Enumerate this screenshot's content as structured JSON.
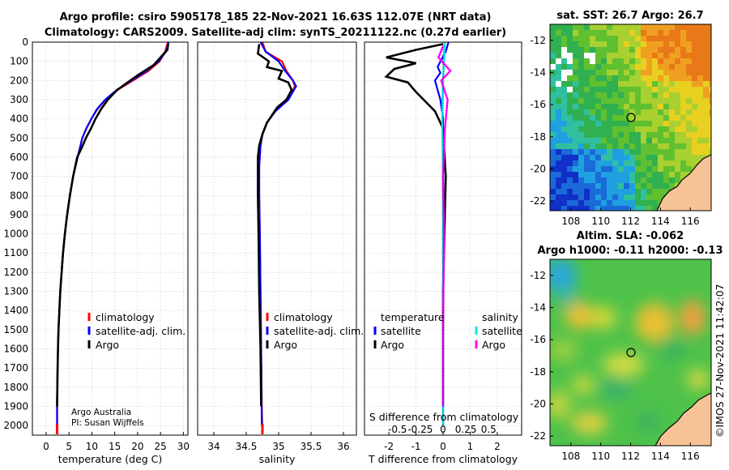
{
  "figure": {
    "title_line1": "Argo profile: csiro 5905178_185 22-Nov-2021 16.63S 112.07E (NRT data)",
    "title_line2": "Climatology: CARS2009. Satellite-adj clim: synTS_20211122.nc (0.27d earlier)",
    "timestamp": "©IMOS 27-Nov-2021 11:42:07",
    "credit_line1": "Argo Australia",
    "credit_line2": "PI: Susan Wijffels"
  },
  "colors": {
    "climatology": "#ff0000",
    "satellite_adj": "#0000ff",
    "argo": "#000000",
    "temp_satellite": "#0000ff",
    "sal_satellite": "#00e5ee",
    "sal_argo": "#ff00ff"
  },
  "chart_data": [
    {
      "id": "temperature",
      "type": "line",
      "xlabel": "temperature (deg C)",
      "xlim": [
        -3,
        31
      ],
      "ylim": [
        0,
        2050
      ],
      "xticks": [
        0,
        5,
        10,
        15,
        20,
        25,
        30
      ],
      "yticks": [
        0,
        100,
        200,
        300,
        400,
        500,
        600,
        700,
        800,
        900,
        1000,
        1100,
        1200,
        1300,
        1400,
        1500,
        1600,
        1700,
        1800,
        1900,
        2000
      ],
      "legend": [
        "climatology",
        "satellite-adj. clim.",
        "Argo"
      ],
      "series": [
        {
          "name": "climatology",
          "color_key": "climatology",
          "x": [
            26.6,
            26.0,
            24.8,
            22.4,
            19.0,
            15.6,
            13.0,
            11.2,
            9.9,
            8.8,
            7.9,
            6.9,
            5.9,
            5.2,
            4.6,
            4.1,
            3.7,
            3.4,
            3.1,
            2.9,
            2.7,
            2.6,
            2.5,
            2.4,
            2.4
          ],
          "y": [
            0,
            50,
            100,
            150,
            200,
            250,
            300,
            350,
            400,
            450,
            500,
            600,
            700,
            800,
            900,
            1000,
            1100,
            1200,
            1300,
            1400,
            1500,
            1600,
            1700,
            1850,
            2040
          ]
        },
        {
          "name": "satellite-adj. clim.",
          "color_key": "satellite_adj",
          "x": [
            26.8,
            26.2,
            24.6,
            22.0,
            18.7,
            15.4,
            12.9,
            11.1,
            9.9,
            8.8,
            7.9,
            6.9,
            5.9,
            5.2,
            4.6,
            4.1,
            3.7,
            3.4,
            3.1,
            2.9,
            2.7,
            2.6,
            2.5,
            2.4,
            2.4
          ],
          "y": [
            0,
            50,
            100,
            150,
            200,
            250,
            300,
            350,
            400,
            450,
            500,
            600,
            700,
            800,
            900,
            1000,
            1100,
            1200,
            1300,
            1400,
            1500,
            1600,
            1700,
            1850,
            2000
          ]
        },
        {
          "name": "Argo",
          "color_key": "argo",
          "x": [
            26.7,
            26.5,
            25.0,
            23.5,
            20.2,
            17.8,
            15.5,
            13.5,
            12.0,
            10.8,
            9.8,
            8.7,
            7.8,
            6.8,
            5.9,
            5.2,
            4.6,
            4.1,
            3.7,
            3.4,
            3.1,
            2.9,
            2.7,
            2.6,
            2.5,
            2.4
          ],
          "y": [
            10,
            40,
            80,
            120,
            170,
            210,
            250,
            300,
            350,
            400,
            450,
            500,
            550,
            600,
            700,
            800,
            900,
            1000,
            1100,
            1200,
            1300,
            1400,
            1500,
            1600,
            1700,
            1900
          ]
        }
      ]
    },
    {
      "id": "salinity",
      "type": "line",
      "xlabel": "salinity",
      "xlim": [
        33.75,
        36.2
      ],
      "ylim": [
        0,
        2050
      ],
      "xticks": [
        34,
        34.5,
        35,
        35.5,
        36
      ],
      "legend": [
        "climatology",
        "satellite-adj. clim.",
        "Argo"
      ],
      "series": [
        {
          "name": "climatology",
          "color_key": "climatology",
          "x": [
            34.75,
            34.8,
            35.05,
            35.12,
            35.22,
            35.25,
            35.15,
            34.95,
            34.82,
            34.75,
            34.72,
            34.7,
            34.7,
            34.71,
            34.72,
            34.73,
            34.74,
            34.75
          ],
          "y": [
            0,
            50,
            100,
            150,
            200,
            230,
            300,
            360,
            420,
            480,
            540,
            650,
            800,
            1000,
            1300,
            1600,
            1900,
            2040
          ]
        },
        {
          "name": "satellite-adj. clim.",
          "color_key": "satellite_adj",
          "x": [
            34.72,
            34.8,
            35.0,
            35.1,
            35.22,
            35.27,
            35.15,
            34.95,
            34.82,
            34.75,
            34.72,
            34.7,
            34.7,
            34.71,
            34.72,
            34.73,
            34.74
          ],
          "y": [
            0,
            50,
            100,
            150,
            200,
            230,
            300,
            360,
            420,
            480,
            540,
            650,
            800,
            1000,
            1300,
            1600,
            2000
          ]
        },
        {
          "name": "Argo",
          "color_key": "argo",
          "x": [
            34.7,
            34.68,
            34.85,
            34.82,
            35.05,
            35.0,
            35.15,
            35.2,
            35.12,
            34.98,
            34.9,
            34.82,
            34.75,
            34.7,
            34.68,
            34.68,
            34.69,
            34.7,
            34.72,
            34.73
          ],
          "y": [
            10,
            60,
            100,
            130,
            150,
            190,
            210,
            250,
            300,
            340,
            380,
            420,
            480,
            540,
            600,
            800,
            1000,
            1300,
            1600,
            1900
          ]
        }
      ]
    },
    {
      "id": "difference",
      "type": "line",
      "xlabel": "T difference from climatology",
      "xlabel_top": "S difference from climatology",
      "xlim": [
        -2.9,
        2.9
      ],
      "ylim": [
        0,
        2050
      ],
      "xticks": [
        -2,
        -1,
        0,
        1,
        2
      ],
      "xticks_top": [
        -0.5,
        -0.25,
        0,
        0.25,
        0.5
      ],
      "xticks_top_labels": [
        "-0.5",
        "-0.25",
        "0",
        "0.25",
        "0.5"
      ],
      "legend_title_left": "temperature",
      "legend_title_right": "salinity",
      "legend_left": [
        "satellite",
        "Argo"
      ],
      "legend_right": [
        "satellite",
        "Argo"
      ],
      "series": [
        {
          "name": "temperature satellite",
          "color_key": "temp_satellite",
          "x": [
            0.2,
            0.1,
            -0.1,
            -0.2,
            -0.1,
            -0.3,
            -0.2,
            -0.1,
            0.0,
            0.0,
            0.0,
            0.0,
            0.0
          ],
          "y": [
            0,
            50,
            100,
            130,
            160,
            200,
            250,
            300,
            400,
            600,
            1000,
            1500,
            2000
          ]
        },
        {
          "name": "temperature Argo",
          "color_key": "argo",
          "x": [
            0.0,
            -1.0,
            -2.1,
            -1.0,
            -1.8,
            -2.1,
            -1.3,
            -1.0,
            -0.3,
            0.0,
            0.1,
            0.0,
            0.0
          ],
          "y": [
            10,
            40,
            80,
            110,
            140,
            180,
            210,
            260,
            360,
            450,
            700,
            1300,
            1900
          ]
        },
        {
          "name": "salinity satellite",
          "color_key": "sal_satellite",
          "x": [
            0.02,
            0.0,
            -0.01,
            0.0,
            0.0,
            0.0,
            0.0
          ],
          "y": [
            0,
            200,
            400,
            700,
            1100,
            1600,
            2000
          ]
        },
        {
          "name": "salinity Argo",
          "color_key": "sal_argo",
          "x": [
            0.0,
            -0.05,
            0.08,
            -0.02,
            0.05,
            0.02,
            0.0,
            0.01,
            0.0,
            0.0
          ],
          "y": [
            20,
            80,
            150,
            200,
            300,
            450,
            700,
            1000,
            1500,
            1900
          ]
        }
      ]
    },
    {
      "id": "sst_map",
      "type": "heatmap",
      "title": "sat. SST: 26.7 Argo: 26.7",
      "xlim": [
        106.6,
        117.4
      ],
      "ylim": [
        -22.6,
        -11.0
      ],
      "xticks": [
        108,
        110,
        112,
        114,
        116
      ],
      "yticks": [
        -12,
        -14,
        -16,
        -18,
        -20,
        -22
      ],
      "argo_position": [
        112.07,
        -16.63
      ]
    },
    {
      "id": "sla_map",
      "type": "heatmap",
      "title_line1": "Altim. SLA: -0.062",
      "title_line2": "Argo h1000: -0.11 h2000: -0.13",
      "xlim": [
        106.6,
        117.4
      ],
      "ylim": [
        -22.6,
        -11.0
      ],
      "xticks": [
        108,
        110,
        112,
        114,
        116
      ],
      "yticks": [
        -12,
        -14,
        -16,
        -18,
        -20,
        -22
      ],
      "argo_position": [
        112.07,
        -16.63
      ]
    }
  ]
}
